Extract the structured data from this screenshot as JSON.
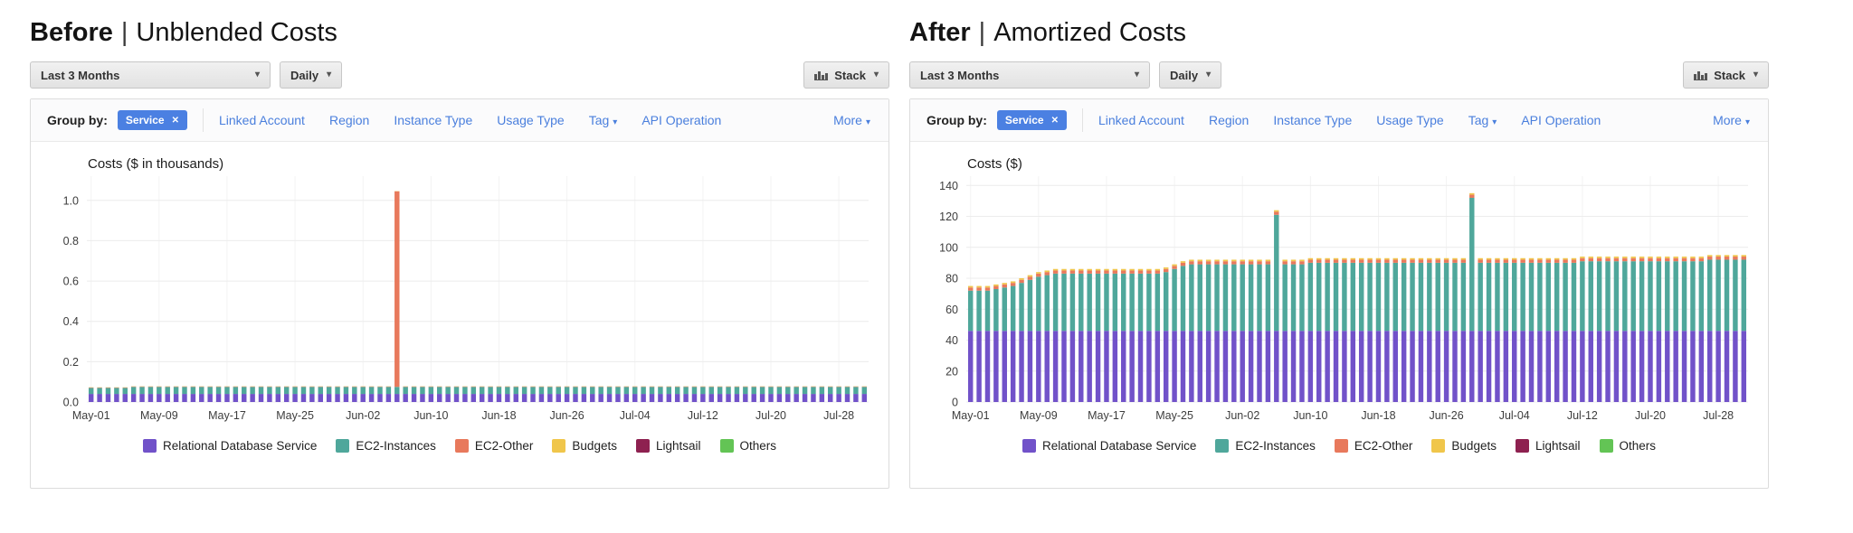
{
  "icons": {
    "caret": "▾",
    "close": "✕"
  },
  "colors": {
    "link_blue": "#4a7fdd",
    "chip_blue": "#4b80e2",
    "card_border": "#dcdcdc",
    "grid_horizontal": "#ececec",
    "grid_vertical": "#f3f3f3",
    "axis_text": "#3d3d3d"
  },
  "legend": [
    {
      "label": "Relational Database Service",
      "color": "#7152c9"
    },
    {
      "label": "EC2-Instances",
      "color": "#4fa79b"
    },
    {
      "label": "EC2-Other",
      "color": "#e8795c"
    },
    {
      "label": "Budgets",
      "color": "#f0c64b"
    },
    {
      "label": "Lightsail",
      "color": "#8e2150"
    },
    {
      "label": "Others",
      "color": "#63c455"
    }
  ],
  "panels": [
    {
      "title_bold": "Before",
      "title_separator": "|",
      "title_rest": "Unblended Costs",
      "controls": {
        "date_range": "Last 3 Months",
        "granularity": "Daily",
        "chart_type": "Stack"
      },
      "group_by": {
        "label": "Group by:",
        "active_chip": "Service",
        "links": [
          "Linked Account",
          "Region",
          "Instance Type",
          "Usage Type"
        ],
        "tag_link": "Tag",
        "api_operation_link": "API Operation",
        "more_link": "More"
      },
      "chart_data": {
        "type": "stacked-bar",
        "axis_title": "Costs ($ in thousands)",
        "y_ticks": [
          "1.0",
          "0.8",
          "0.6",
          "0.4",
          "0.2",
          "0.0"
        ],
        "y_render_max": 1.12,
        "n_bars": 92,
        "x_tick_labels": [
          "May-01",
          "May-09",
          "May-17",
          "May-25",
          "Jun-02",
          "Jun-10",
          "Jun-18",
          "Jun-26",
          "Jul-04",
          "Jul-12",
          "Jul-20",
          "Jul-28"
        ],
        "x_tick_indices": [
          0,
          8,
          16,
          24,
          32,
          40,
          48,
          56,
          64,
          72,
          80,
          88
        ],
        "series": [
          {
            "name": "Relational Database Service",
            "values_rle": [
              [
                0.04,
                92
              ]
            ]
          },
          {
            "name": "EC2-Instances",
            "values_rle": [
              [
                0.03,
                5
              ],
              [
                0.035,
                87
              ]
            ]
          },
          {
            "name": "EC2-Other",
            "values_rle": [
              [
                0.002,
                36
              ],
              [
                0.97,
                1
              ],
              [
                0.002,
                55
              ]
            ]
          },
          {
            "name": "Budgets",
            "values_rle": [
              [
                0.001,
                92
              ]
            ]
          }
        ]
      }
    },
    {
      "title_bold": "After",
      "title_separator": "|",
      "title_rest": "Amortized Costs",
      "controls": {
        "date_range": "Last 3 Months",
        "granularity": "Daily",
        "chart_type": "Stack"
      },
      "group_by": {
        "label": "Group by:",
        "active_chip": "Service",
        "links": [
          "Linked Account",
          "Region",
          "Instance Type",
          "Usage Type"
        ],
        "tag_link": "Tag",
        "api_operation_link": "API Operation",
        "more_link": "More"
      },
      "chart_data": {
        "type": "stacked-bar",
        "axis_title": "Costs ($)",
        "y_ticks": [
          "140",
          "120",
          "100",
          "80",
          "60",
          "40",
          "20",
          "0"
        ],
        "y_render_max": 146,
        "n_bars": 92,
        "x_tick_labels": [
          "May-01",
          "May-09",
          "May-17",
          "May-25",
          "Jun-02",
          "Jun-10",
          "Jun-18",
          "Jun-26",
          "Jul-04",
          "Jul-12",
          "Jul-20",
          "Jul-28"
        ],
        "x_tick_indices": [
          0,
          8,
          16,
          24,
          32,
          40,
          48,
          56,
          64,
          72,
          80,
          88
        ],
        "series": [
          {
            "name": "Relational Database Service",
            "values_rle": [
              [
                46,
                92
              ]
            ]
          },
          {
            "name": "EC2-Instances",
            "values_rle": [
              [
                26,
                3
              ],
              [
                27,
                1
              ],
              [
                28,
                1
              ],
              [
                29,
                1
              ],
              [
                31,
                1
              ],
              [
                33,
                1
              ],
              [
                35,
                1
              ],
              [
                36,
                1
              ],
              [
                37,
                13
              ],
              [
                38,
                1
              ],
              [
                40,
                1
              ],
              [
                42,
                1
              ],
              [
                43,
                10
              ],
              [
                75,
                1
              ],
              [
                43,
                3
              ],
              [
                44,
                19
              ],
              [
                86,
                1
              ],
              [
                44,
                12
              ],
              [
                45,
                15
              ],
              [
                46,
                5
              ]
            ]
          },
          {
            "name": "EC2-Other",
            "values_rle": [
              [
                2,
                92
              ]
            ]
          },
          {
            "name": "Budgets",
            "values_rle": [
              [
                1,
                92
              ]
            ]
          }
        ]
      }
    }
  ]
}
